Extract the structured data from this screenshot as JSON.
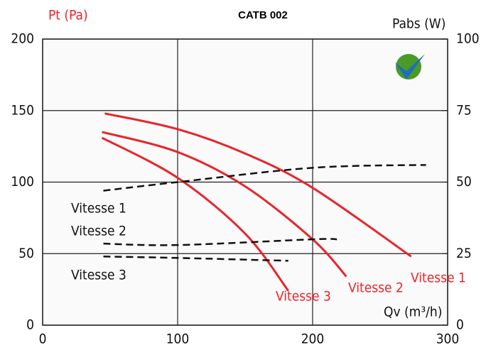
{
  "chart_data": {
    "type": "line",
    "title": "CATB 002",
    "ylabel": "Pt (Pa)",
    "y2label": "Pabs (W)",
    "xlabel": "Qv (m³/h)",
    "xlim": [
      0,
      300
    ],
    "xticks": [
      0,
      100,
      200,
      300
    ],
    "ylim": [
      0,
      200
    ],
    "yticks": [
      0,
      50,
      100,
      150,
      200
    ],
    "y2lim": [
      0,
      100
    ],
    "y2ticks": [
      0,
      25,
      50,
      75,
      100
    ],
    "grid": true,
    "series": [
      {
        "name": "Vitesse 1",
        "color": "#e8242b",
        "style": "solid",
        "x": [
          46,
          100,
          150,
          200,
          273
        ],
        "values": [
          148,
          137,
          120,
          96,
          48
        ]
      },
      {
        "name": "Vitesse 2",
        "color": "#e8242b",
        "style": "solid",
        "x": [
          44,
          100,
          150,
          200,
          225
        ],
        "values": [
          135,
          121,
          97,
          60,
          34
        ]
      },
      {
        "name": "Vitesse 3",
        "color": "#e8242b",
        "style": "solid",
        "x": [
          44,
          100,
          150,
          182
        ],
        "values": [
          131,
          103,
          64,
          24
        ]
      },
      {
        "name": "Vitesse 1",
        "color": "#111111",
        "style": "dashed",
        "axis": "y2",
        "x": [
          45,
          100,
          200,
          284
        ],
        "values": [
          47,
          50,
          55,
          56
        ]
      },
      {
        "name": "Vitesse 2",
        "color": "#111111",
        "style": "dashed",
        "axis": "y2",
        "x": [
          45,
          100,
          200,
          218
        ],
        "values": [
          28.5,
          28,
          30,
          30
        ]
      },
      {
        "name": "Vitesse 3",
        "color": "#111111",
        "style": "dashed",
        "axis": "y2",
        "x": [
          45,
          100,
          182
        ],
        "values": [
          24,
          23.5,
          22.5
        ]
      }
    ]
  }
}
